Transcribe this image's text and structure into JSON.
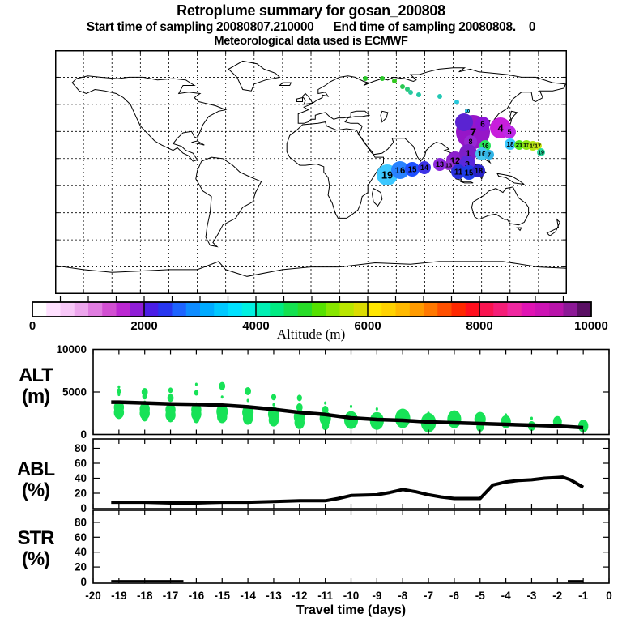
{
  "header": {
    "title": "Retroplume summary for gosan_200808",
    "subtitle": "Start time of sampling 20080807.210000      End time of sampling 20080808.    0",
    "met_line": "Meteorological data used is ECMWF"
  },
  "colorbar": {
    "title": "Altitude (m)",
    "min": 0,
    "max": 10000,
    "cell_m": 250,
    "tick_step": 500,
    "separators": [
      2000,
      4000,
      6000,
      8000
    ],
    "tick_labels": [
      "0",
      "2000",
      "4000",
      "6000",
      "8000",
      "10000"
    ],
    "colors": [
      "#ffffff",
      "#ffe1ff",
      "#f8c8f8",
      "#eda6ed",
      "#e07de0",
      "#d24fd2",
      "#bc28d2",
      "#901ed7",
      "#4b1ee6",
      "#2837f0",
      "#1e64ff",
      "#0f8cff",
      "#00aaff",
      "#00c8ff",
      "#00e1ff",
      "#00f0e1",
      "#00f0b4",
      "#00eb82",
      "#14e150",
      "#28dc28",
      "#55e100",
      "#87e600",
      "#b9e600",
      "#dcdc00",
      "#ffe600",
      "#ffd200",
      "#ffb900",
      "#ff9b00",
      "#ff7800",
      "#ff5000",
      "#ff2800",
      "#ff0f1e",
      "#fa1450",
      "#f51e78",
      "#f028a0",
      "#e114b4",
      "#cd14b4",
      "#b914aa",
      "#8c1996",
      "#5a0f64"
    ]
  },
  "map": {
    "trail": [
      [
        383,
        35,
        "#28c828",
        ""
      ],
      [
        404,
        35,
        "#28c828",
        ""
      ],
      [
        419,
        38,
        "#32c81e",
        ""
      ],
      [
        429,
        45,
        "#28c850",
        ""
      ],
      [
        435,
        48,
        "#28c878",
        ""
      ],
      [
        439,
        52,
        "#28c8a0",
        ""
      ],
      [
        449,
        55,
        "#23c8a5",
        ""
      ],
      [
        475,
        57,
        "#23c8b4",
        ""
      ],
      [
        496,
        64,
        "#28c8dc",
        ""
      ],
      [
        509,
        75,
        "#28c8f0",
        "10"
      ]
    ],
    "points": [
      [
        516,
        101,
        21,
        "#9616c8",
        "7"
      ],
      [
        505,
        89,
        11,
        "#5a23d2",
        ""
      ],
      [
        528,
        91,
        9,
        "#8c14d7",
        "6"
      ],
      [
        550,
        96,
        13,
        "#c81edc",
        "4"
      ],
      [
        561,
        101,
        8,
        "#be28e6",
        "5"
      ],
      [
        513,
        113,
        8,
        "#9628d2",
        "8"
      ],
      [
        494,
        136,
        11,
        "#8c1ecd",
        "12"
      ],
      [
        510,
        127,
        11,
        "#7d1ec8",
        "1"
      ],
      [
        509,
        140,
        10,
        "#5a28dc",
        "3"
      ],
      [
        486,
        142,
        6,
        "#9632d2",
        "13"
      ],
      [
        498,
        150,
        9,
        "#2832dc",
        "11"
      ],
      [
        511,
        151,
        9,
        "#1e3ce6",
        "15"
      ],
      [
        523,
        149,
        8,
        "#2823c8",
        "18"
      ],
      [
        531,
        118,
        7,
        "#28e65a",
        "16"
      ],
      [
        527,
        128,
        8,
        "#46c8f0",
        "16"
      ],
      [
        536,
        129,
        6,
        "#32b4e6",
        "7"
      ],
      [
        562,
        116,
        7,
        "#3cc8ff",
        "18"
      ],
      [
        573,
        117,
        6,
        "#55e61e",
        "21"
      ],
      [
        582,
        117,
        6,
        "#8ce614",
        "11"
      ],
      [
        590,
        118,
        6,
        "#b4e614",
        "15"
      ],
      [
        596,
        118,
        5,
        "#c8e614",
        "17"
      ],
      [
        600,
        126,
        5,
        "#28dca0",
        "19"
      ],
      [
        410,
        154,
        13,
        "#3cc8ff",
        "19"
      ],
      [
        426,
        148,
        11,
        "#2882ff",
        "16"
      ],
      [
        441,
        147,
        9,
        "#1e50ff",
        "15"
      ],
      [
        456,
        145,
        8,
        "#3c32e6",
        "14"
      ],
      [
        475,
        141,
        8,
        "#8c28dc",
        "13"
      ]
    ]
  },
  "labels": {
    "alt": "ALT",
    "alt_unit": "(m)",
    "abl": "ABL",
    "abl_unit": "(%)",
    "str": "STR",
    "str_unit": "(%)",
    "xlabel": "Travel time (days)"
  },
  "chart_data": [
    {
      "id": "alt",
      "type": "scatter",
      "ylabel": "ALT (m)",
      "ylim": [
        0,
        10500
      ],
      "yticks": [
        10000,
        5000,
        0
      ],
      "xlim": [
        -20,
        0
      ],
      "point_color": "#17e257",
      "mean_line": {
        "x": [
          -19.3,
          -19,
          -18,
          -17,
          -16,
          -15,
          -14,
          -13,
          -12,
          -11,
          -10,
          -9,
          -8,
          -7,
          -6,
          -5,
          -4,
          -3,
          -2,
          -1
        ],
        "y": [
          3800,
          3800,
          3700,
          3600,
          3550,
          3450,
          3250,
          2950,
          2600,
          2350,
          1950,
          1760,
          1670,
          1480,
          1380,
          1290,
          1190,
          1100,
          1000,
          810
        ]
      },
      "clusters": [
        [
          -19,
          5600,
          2
        ],
        [
          -19,
          5100,
          3.5
        ],
        [
          -19,
          4700,
          2
        ],
        [
          -19,
          3200,
          8
        ],
        [
          -19,
          2600,
          8
        ],
        [
          -19,
          2300,
          5
        ],
        [
          -18,
          5000,
          5
        ],
        [
          -18,
          4500,
          4
        ],
        [
          -18,
          3800,
          2
        ],
        [
          -18,
          3000,
          8
        ],
        [
          -18,
          2500,
          8
        ],
        [
          -18,
          2000,
          5
        ],
        [
          -17,
          5200,
          3.5
        ],
        [
          -17,
          4300,
          5
        ],
        [
          -17,
          2900,
          8
        ],
        [
          -17,
          2300,
          8
        ],
        [
          -17,
          1900,
          5
        ],
        [
          -16,
          5900,
          2
        ],
        [
          -16,
          4900,
          3.5
        ],
        [
          -16,
          3600,
          2
        ],
        [
          -16,
          2900,
          8
        ],
        [
          -16,
          2400,
          8
        ],
        [
          -16,
          1800,
          5
        ],
        [
          -15,
          5700,
          5
        ],
        [
          -15,
          4400,
          2
        ],
        [
          -15,
          2700,
          9
        ],
        [
          -15,
          2100,
          8
        ],
        [
          -14,
          5100,
          5
        ],
        [
          -14,
          4000,
          2
        ],
        [
          -14,
          2600,
          9
        ],
        [
          -14,
          1900,
          8
        ],
        [
          -13,
          4400,
          4
        ],
        [
          -13,
          3500,
          2
        ],
        [
          -13,
          2400,
          9
        ],
        [
          -13,
          1700,
          8
        ],
        [
          -12,
          4300,
          4
        ],
        [
          -12,
          3200,
          5
        ],
        [
          -12,
          2100,
          9
        ],
        [
          -12,
          1400,
          8
        ],
        [
          -11,
          3700,
          2
        ],
        [
          -11,
          2900,
          5
        ],
        [
          -11,
          1900,
          9
        ],
        [
          -11,
          1100,
          6
        ],
        [
          -10,
          3300,
          2
        ],
        [
          -10,
          1700,
          11
        ],
        [
          -9,
          3000,
          2
        ],
        [
          -9,
          1600,
          11
        ],
        [
          -8,
          1900,
          12
        ],
        [
          -7,
          2500,
          2
        ],
        [
          -7,
          1400,
          12
        ],
        [
          -6,
          1800,
          11
        ],
        [
          -5,
          1800,
          9
        ],
        [
          -5,
          900,
          6
        ],
        [
          -4,
          2300,
          2
        ],
        [
          -4,
          1500,
          8
        ],
        [
          -3,
          1900,
          2
        ],
        [
          -3,
          1000,
          6
        ],
        [
          -2,
          1500,
          7
        ],
        [
          -1,
          1000,
          8
        ]
      ]
    },
    {
      "id": "abl",
      "type": "line",
      "ylabel": "ABL (%)",
      "ylim": [
        0,
        92
      ],
      "yticks": [
        80,
        60,
        40,
        20,
        0
      ],
      "xlim": [
        -20,
        0
      ],
      "line": {
        "x": [
          -19.3,
          -19,
          -18,
          -17,
          -16,
          -15,
          -14,
          -13,
          -12,
          -11,
          -10.5,
          -10,
          -9,
          -8.5,
          -8,
          -7.5,
          -7,
          -6.5,
          -6,
          -5.5,
          -5,
          -4.5,
          -4,
          -3.5,
          -3,
          -2.5,
          -2,
          -1.8,
          -1.5,
          -1
        ],
        "y": [
          8,
          8,
          8,
          7,
          7,
          8,
          8,
          9,
          10,
          10,
          13,
          17,
          18,
          21,
          25,
          22,
          18,
          15,
          13,
          13,
          13,
          31,
          35,
          37,
          38,
          40,
          41,
          41.5,
          38,
          28
        ]
      }
    },
    {
      "id": "str",
      "type": "line",
      "ylabel": "STR (%)",
      "ylim": [
        0,
        96
      ],
      "yticks": [
        80,
        60,
        40,
        20,
        0
      ],
      "xlim": [
        -20,
        0
      ],
      "segments": [
        {
          "x": [
            -19.3,
            -16.5
          ],
          "y": [
            1,
            1
          ]
        },
        {
          "x": [
            -1.6,
            -1
          ],
          "y": [
            1,
            1
          ]
        }
      ]
    }
  ],
  "x_axis": {
    "tick_labels": [
      "-20",
      "-19",
      "-18",
      "-17",
      "-16",
      "-15",
      "-14",
      "-13",
      "-12",
      "-11",
      "-10",
      "-9",
      "-8",
      "-7",
      "-6",
      "-5",
      "-4",
      "-3",
      "-2",
      "-1",
      "0"
    ],
    "tick_values": [
      -20,
      -19,
      -18,
      -17,
      -16,
      -15,
      -14,
      -13,
      -12,
      -11,
      -10,
      -9,
      -8,
      -7,
      -6,
      -5,
      -4,
      -3,
      -2,
      -1,
      0
    ]
  }
}
